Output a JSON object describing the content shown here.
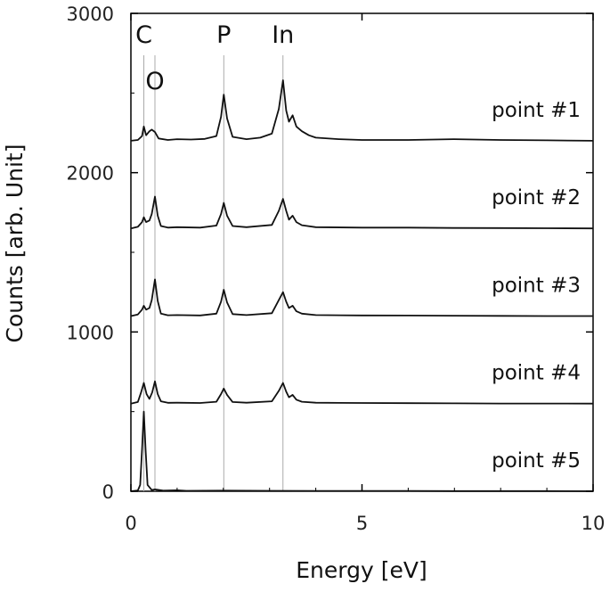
{
  "chart_data": {
    "type": "line",
    "xlabel": "Energy [eV]",
    "ylabel": "Counts [arb. Unit]",
    "xlim": [
      0,
      10
    ],
    "ylim": [
      0,
      3000
    ],
    "xticks": [
      0,
      5,
      10
    ],
    "yticks": [
      0,
      1000,
      2000,
      3000
    ],
    "grid": false,
    "reference_lines": [
      {
        "label": "C",
        "x": 0.28
      },
      {
        "label": "O",
        "x": 0.52
      },
      {
        "label": "P",
        "x": 2.01
      },
      {
        "label": "In",
        "x": 3.29
      }
    ],
    "series": [
      {
        "name": "point #1",
        "points": [
          [
            0,
            2200
          ],
          [
            0.15,
            2205
          ],
          [
            0.24,
            2230
          ],
          [
            0.28,
            2290
          ],
          [
            0.33,
            2235
          ],
          [
            0.4,
            2260
          ],
          [
            0.45,
            2270
          ],
          [
            0.52,
            2255
          ],
          [
            0.6,
            2215
          ],
          [
            0.8,
            2205
          ],
          [
            1.0,
            2210
          ],
          [
            1.3,
            2208
          ],
          [
            1.6,
            2212
          ],
          [
            1.85,
            2230
          ],
          [
            1.95,
            2350
          ],
          [
            2.01,
            2490
          ],
          [
            2.08,
            2340
          ],
          [
            2.2,
            2225
          ],
          [
            2.5,
            2210
          ],
          [
            2.8,
            2220
          ],
          [
            3.05,
            2245
          ],
          [
            3.2,
            2400
          ],
          [
            3.29,
            2580
          ],
          [
            3.36,
            2390
          ],
          [
            3.42,
            2320
          ],
          [
            3.5,
            2360
          ],
          [
            3.58,
            2290
          ],
          [
            3.7,
            2260
          ],
          [
            3.85,
            2235
          ],
          [
            4.0,
            2220
          ],
          [
            4.5,
            2210
          ],
          [
            5.0,
            2205
          ],
          [
            6.0,
            2205
          ],
          [
            7.0,
            2210
          ],
          [
            8.0,
            2205
          ],
          [
            9.0,
            2203
          ],
          [
            10.0,
            2200
          ]
        ]
      },
      {
        "name": "point #2",
        "points": [
          [
            0,
            1650
          ],
          [
            0.15,
            1660
          ],
          [
            0.24,
            1690
          ],
          [
            0.28,
            1720
          ],
          [
            0.33,
            1690
          ],
          [
            0.4,
            1700
          ],
          [
            0.45,
            1740
          ],
          [
            0.52,
            1850
          ],
          [
            0.58,
            1730
          ],
          [
            0.65,
            1665
          ],
          [
            0.8,
            1655
          ],
          [
            1.0,
            1658
          ],
          [
            1.5,
            1655
          ],
          [
            1.85,
            1668
          ],
          [
            1.95,
            1740
          ],
          [
            2.01,
            1810
          ],
          [
            2.08,
            1730
          ],
          [
            2.2,
            1665
          ],
          [
            2.5,
            1658
          ],
          [
            3.05,
            1672
          ],
          [
            3.2,
            1760
          ],
          [
            3.29,
            1835
          ],
          [
            3.36,
            1760
          ],
          [
            3.42,
            1705
          ],
          [
            3.5,
            1730
          ],
          [
            3.58,
            1690
          ],
          [
            3.7,
            1670
          ],
          [
            4.0,
            1658
          ],
          [
            5.0,
            1655
          ],
          [
            6.0,
            1655
          ],
          [
            7.0,
            1653
          ],
          [
            8.0,
            1652
          ],
          [
            9.0,
            1651
          ],
          [
            10.0,
            1650
          ]
        ]
      },
      {
        "name": "point #3",
        "points": [
          [
            0,
            1100
          ],
          [
            0.15,
            1110
          ],
          [
            0.24,
            1140
          ],
          [
            0.28,
            1165
          ],
          [
            0.33,
            1140
          ],
          [
            0.4,
            1150
          ],
          [
            0.45,
            1200
          ],
          [
            0.52,
            1330
          ],
          [
            0.58,
            1195
          ],
          [
            0.65,
            1115
          ],
          [
            0.8,
            1105
          ],
          [
            1.0,
            1106
          ],
          [
            1.5,
            1104
          ],
          [
            1.85,
            1115
          ],
          [
            1.95,
            1190
          ],
          [
            2.01,
            1265
          ],
          [
            2.08,
            1185
          ],
          [
            2.2,
            1112
          ],
          [
            2.5,
            1106
          ],
          [
            3.05,
            1118
          ],
          [
            3.2,
            1200
          ],
          [
            3.29,
            1250
          ],
          [
            3.36,
            1190
          ],
          [
            3.42,
            1150
          ],
          [
            3.5,
            1165
          ],
          [
            3.58,
            1130
          ],
          [
            3.7,
            1115
          ],
          [
            4.0,
            1106
          ],
          [
            5.0,
            1104
          ],
          [
            6.0,
            1103
          ],
          [
            7.0,
            1102
          ],
          [
            8.0,
            1101
          ],
          [
            9.0,
            1100
          ],
          [
            10.0,
            1100
          ]
        ]
      },
      {
        "name": "point #4",
        "points": [
          [
            0,
            550
          ],
          [
            0.15,
            560
          ],
          [
            0.22,
            620
          ],
          [
            0.28,
            680
          ],
          [
            0.34,
            610
          ],
          [
            0.4,
            580
          ],
          [
            0.46,
            620
          ],
          [
            0.52,
            690
          ],
          [
            0.58,
            610
          ],
          [
            0.65,
            565
          ],
          [
            0.8,
            555
          ],
          [
            1.0,
            556
          ],
          [
            1.5,
            554
          ],
          [
            1.85,
            562
          ],
          [
            1.95,
            610
          ],
          [
            2.01,
            645
          ],
          [
            2.08,
            605
          ],
          [
            2.2,
            560
          ],
          [
            2.5,
            556
          ],
          [
            3.05,
            565
          ],
          [
            3.2,
            630
          ],
          [
            3.29,
            680
          ],
          [
            3.36,
            625
          ],
          [
            3.42,
            590
          ],
          [
            3.5,
            605
          ],
          [
            3.58,
            575
          ],
          [
            3.7,
            562
          ],
          [
            4.0,
            556
          ],
          [
            5.0,
            554
          ],
          [
            6.0,
            553
          ],
          [
            7.0,
            552
          ],
          [
            8.0,
            551
          ],
          [
            9.0,
            551
          ],
          [
            10.0,
            550
          ]
        ]
      },
      {
        "name": "point #5",
        "points": [
          [
            0,
            0
          ],
          [
            0.15,
            5
          ],
          [
            0.2,
            40
          ],
          [
            0.24,
            260
          ],
          [
            0.28,
            500
          ],
          [
            0.32,
            250
          ],
          [
            0.36,
            40
          ],
          [
            0.45,
            8
          ],
          [
            0.52,
            12
          ],
          [
            0.7,
            4
          ],
          [
            1.0,
            6
          ],
          [
            1.2,
            3
          ],
          [
            2.0,
            4
          ],
          [
            3.0,
            3
          ],
          [
            4.0,
            2
          ],
          [
            5.0,
            2
          ],
          [
            6.0,
            2
          ],
          [
            7.0,
            1
          ],
          [
            8.0,
            1
          ],
          [
            9.0,
            1
          ],
          [
            10.0,
            0
          ]
        ]
      }
    ]
  }
}
